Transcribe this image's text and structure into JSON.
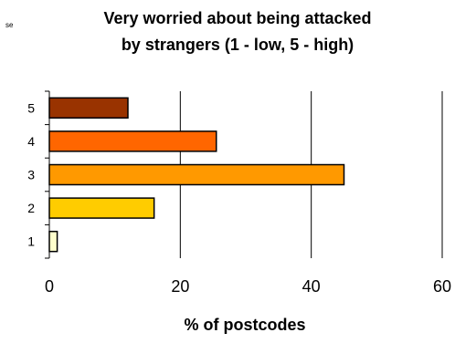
{
  "corner_label": "se",
  "chart_data": {
    "type": "bar",
    "orientation": "horizontal",
    "title": "Very worried about being attacked by strangers (1 - low, 5 - high)",
    "title_lines": [
      "Very worried about being attacked",
      "by strangers (1 - low, 5 - high)"
    ],
    "xlabel": "% of postcodes",
    "ylabel": "",
    "categories": [
      "5",
      "4",
      "3",
      "2",
      "1"
    ],
    "values": [
      12,
      25.5,
      45,
      16,
      1.2
    ],
    "colors": [
      "#993300",
      "#ff6600",
      "#ff9900",
      "#ffcc00",
      "#ffffcc"
    ],
    "xlim": [
      0,
      60
    ],
    "xticks": [
      "0",
      "20",
      "40",
      "60"
    ],
    "grid": "vertical",
    "legend": "none"
  }
}
